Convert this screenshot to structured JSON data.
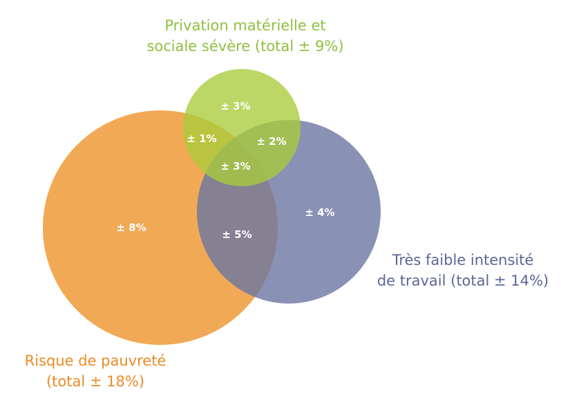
{
  "colors": {
    "green": "#a9cc3b",
    "blue": "#6b76a3",
    "orange": "#ef9a37",
    "green_text": "#8cc03e",
    "blue_text": "#5a6696",
    "orange_text": "#ec8a22",
    "region_text": "#ffffff"
  },
  "sets": {
    "green": {
      "line1": "Privation matérielle et",
      "line2": "sociale sévère (total ± 9%)"
    },
    "blue": {
      "line1": "Très faible intensité",
      "line2": "de travail (total ± 14%)"
    },
    "orange": {
      "line1": "Risque de pauvreté",
      "line2": "(total ± 18%)"
    }
  },
  "regions": {
    "green_only": "± 3%",
    "orange_green": "± 1%",
    "green_blue": "± 2%",
    "all_three": "± 3%",
    "orange_only": "± 8%",
    "orange_blue": "± 5%",
    "blue_only": "± 4%"
  }
}
